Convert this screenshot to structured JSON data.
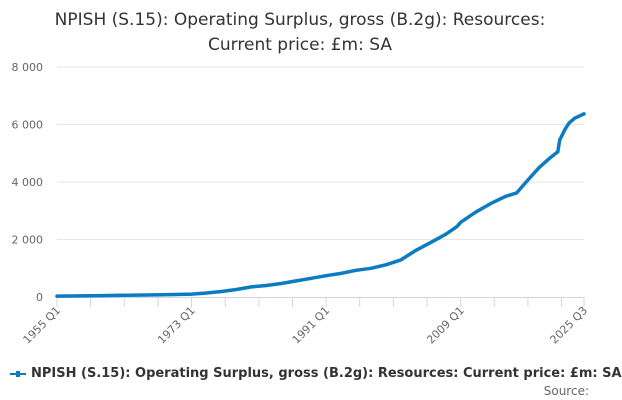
{
  "chart_data": {
    "type": "line",
    "title": "NPISH (S.15): Operating Surplus, gross (B.2g): Resources: Current price: £m: SA",
    "title_lines": [
      "NPISH (S.15): Operating Surplus, gross (B.2g): Resources:",
      "Current price: £m: SA"
    ],
    "xlabel": "",
    "ylabel": "",
    "x_range": [
      "1955 Q1",
      "2025 Q3"
    ],
    "x_tick_labels": [
      "1955 Q1",
      "1973 Q1",
      "1991 Q1",
      "2009 Q1",
      "2025 Q3"
    ],
    "ylim": [
      0,
      8000
    ],
    "y_ticks": [
      0,
      2000,
      4000,
      6000,
      8000
    ],
    "y_tick_labels": [
      "0",
      "2 000",
      "4 000",
      "6 000",
      "8 000"
    ],
    "grid": "horizontal",
    "legend_placement": "bottom",
    "series": [
      {
        "name": "NPISH (S.15): Operating Surplus, gross (B.2g): Resources: Current price: £m: SA",
        "color": "#0c7cc1",
        "x": [
          "1955 Q1",
          "1958 Q1",
          "1961 Q1",
          "1964 Q1",
          "1967 Q1",
          "1970 Q1",
          "1973 Q1",
          "1975 Q1",
          "1977 Q1",
          "1979 Q1",
          "1981 Q1",
          "1983 Q1",
          "1985 Q1",
          "1987 Q1",
          "1989 Q1",
          "1991 Q1",
          "1993 Q1",
          "1995 Q1",
          "1997 Q1",
          "1999 Q1",
          "2001 Q1",
          "2003 Q1",
          "2005 Q1",
          "2007 Q1",
          "2008 Q3",
          "2009 Q1",
          "2011 Q1",
          "2013 Q1",
          "2015 Q1",
          "2016 Q3",
          "2018 Q1",
          "2019 Q3",
          "2021 Q1",
          "2022 Q1",
          "2022 Q2",
          "2023 Q1",
          "2023 Q3",
          "2024 Q2",
          "2025 Q3"
        ],
        "values": [
          30,
          40,
          50,
          60,
          70,
          85,
          100,
          140,
          190,
          260,
          350,
          400,
          470,
          560,
          650,
          740,
          820,
          930,
          1000,
          1120,
          1290,
          1620,
          1900,
          2180,
          2450,
          2600,
          2950,
          3250,
          3500,
          3620,
          4070,
          4500,
          4850,
          5050,
          5460,
          5850,
          6050,
          6220,
          6370
        ]
      }
    ]
  },
  "legend": {
    "label": "NPISH (S.15): Operating Surplus, gross (B.2g): Resources: Current price: £m: SA"
  },
  "source": {
    "label": "Source:"
  }
}
